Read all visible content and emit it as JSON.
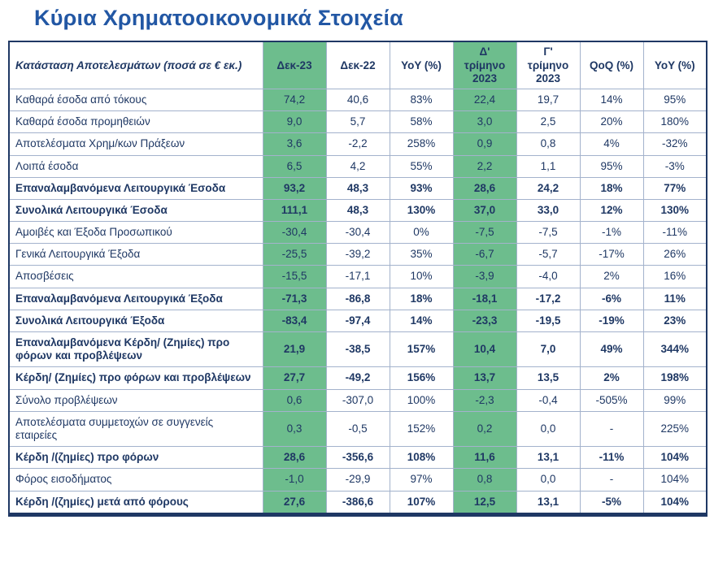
{
  "title": "Κύρια Χρηματοοικονομικά Στοιχεία",
  "colors": {
    "accent_green": "#6DBD8D",
    "navy_text": "#1F3864",
    "title_blue": "#2257A4"
  },
  "table": {
    "columns": [
      {
        "key": "income-statement",
        "label": "Κατάσταση Αποτελεσμάτων (ποσά σε € εκ.)",
        "green": false
      },
      {
        "key": "dec-23",
        "label": "Δεκ-23",
        "green": true
      },
      {
        "key": "dec-22",
        "label": "Δεκ-22",
        "green": false
      },
      {
        "key": "yoy-annual",
        "label": "YoY (%)",
        "green": false
      },
      {
        "key": "q4-2023",
        "label": "Δ'\nτρίμηνο\n2023",
        "green": true
      },
      {
        "key": "q3-2023",
        "label": "Γ'\nτρίμηνο\n2023",
        "green": false
      },
      {
        "key": "qoq",
        "label": "QoQ (%)",
        "green": false
      },
      {
        "key": "yoy-quarter",
        "label": "YoY (%)",
        "green": false
      }
    ],
    "rows": [
      {
        "label": "Καθαρά έσοδα από τόκους",
        "bold": false,
        "values": [
          "74,2",
          "40,6",
          "83%",
          "22,4",
          "19,7",
          "14%",
          "95%"
        ]
      },
      {
        "label": "Καθαρά έσοδα προμηθειών",
        "bold": false,
        "values": [
          "9,0",
          "5,7",
          "58%",
          "3,0",
          "2,5",
          "20%",
          "180%"
        ]
      },
      {
        "label": "Αποτελέσματα Χρημ/κων Πράξεων",
        "bold": false,
        "values": [
          "3,6",
          "-2,2",
          "258%",
          "0,9",
          "0,8",
          "4%",
          "-32%"
        ]
      },
      {
        "label": "Λοιπά έσοδα",
        "bold": false,
        "values": [
          "6,5",
          "4,2",
          "55%",
          "2,2",
          "1,1",
          "95%",
          "-3%"
        ]
      },
      {
        "label": "Επαναλαμβανόμενα Λειτουργικά Έσοδα",
        "bold": true,
        "values": [
          "93,2",
          "48,3",
          "93%",
          "28,6",
          "24,2",
          "18%",
          "77%"
        ]
      },
      {
        "label": "Συνολικά Λειτουργικά Έσοδα",
        "bold": true,
        "values": [
          "111,1",
          "48,3",
          "130%",
          "37,0",
          "33,0",
          "12%",
          "130%"
        ]
      },
      {
        "label": "Αμοιβές και Έξοδα Προσωπικού",
        "bold": false,
        "values": [
          "-30,4",
          "-30,4",
          "0%",
          "-7,5",
          "-7,5",
          "-1%",
          "-11%"
        ]
      },
      {
        "label": "Γενικά Λειτουργικά Έξοδα",
        "bold": false,
        "values": [
          "-25,5",
          "-39,2",
          "35%",
          "-6,7",
          "-5,7",
          "-17%",
          "26%"
        ]
      },
      {
        "label": "Αποσβέσεις",
        "bold": false,
        "values": [
          "-15,5",
          "-17,1",
          "10%",
          "-3,9",
          "-4,0",
          "2%",
          "16%"
        ]
      },
      {
        "label": "Επαναλαμβανόμενα Λειτουργικά Έξοδα",
        "bold": true,
        "values": [
          "-71,3",
          "-86,8",
          "18%",
          "-18,1",
          "-17,2",
          "-6%",
          "11%"
        ]
      },
      {
        "label": "Συνολικά Λειτουργικά Έξοδα",
        "bold": true,
        "values": [
          "-83,4",
          "-97,4",
          "14%",
          "-23,3",
          "-19,5",
          "-19%",
          "23%"
        ]
      },
      {
        "label": "Επαναλαμβανόμενα Κέρδη/ (Ζημίες) προ φόρων και προβλέψεων",
        "bold": true,
        "values": [
          "21,9",
          "-38,5",
          "157%",
          "10,4",
          "7,0",
          "49%",
          "344%"
        ]
      },
      {
        "label": "Κέρδη/ (Ζημίες) προ φόρων και προβλέψεων",
        "bold": true,
        "values": [
          "27,7",
          "-49,2",
          "156%",
          "13,7",
          "13,5",
          "2%",
          "198%"
        ]
      },
      {
        "label": "Σύνολο προβλέψεων",
        "bold": false,
        "values": [
          "0,6",
          "-307,0",
          "100%",
          "-2,3",
          "-0,4",
          "-505%",
          "99%"
        ]
      },
      {
        "label": "Αποτελέσματα συμμετοχών σε συγγενείς εταιρείες",
        "bold": false,
        "values": [
          "0,3",
          "-0,5",
          "152%",
          "0,2",
          "0,0",
          "-",
          "225%"
        ]
      },
      {
        "label": "Κέρδη /(ζημίες) προ φόρων",
        "bold": true,
        "values": [
          "28,6",
          "-356,6",
          "108%",
          "11,6",
          "13,1",
          "-11%",
          "104%"
        ]
      },
      {
        "label": "Φόρος εισοδήματος",
        "bold": false,
        "values": [
          "-1,0",
          "-29,9",
          "97%",
          "0,8",
          "0,0",
          "-",
          "104%"
        ]
      },
      {
        "label": "Κέρδη /(ζημίες) μετά από φόρους",
        "bold": true,
        "values": [
          "27,6",
          "-386,6",
          "107%",
          "12,5",
          "13,1",
          "-5%",
          "104%"
        ]
      }
    ]
  }
}
